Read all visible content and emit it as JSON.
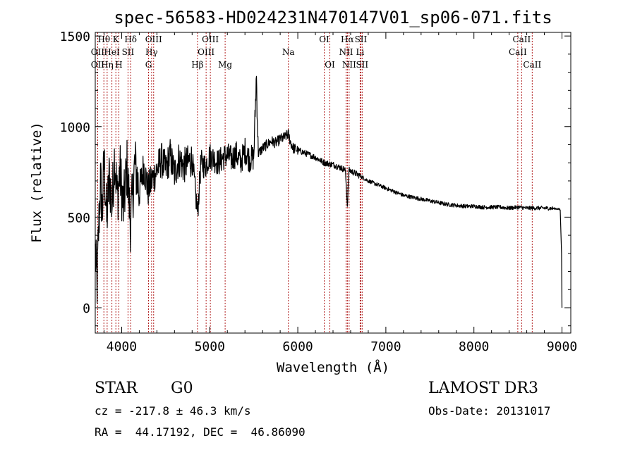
{
  "chart_data": {
    "type": "line",
    "title": "spec-56583-HD024231N470147V01_sp06-071.fits",
    "xlabel": "Wavelength (Å)",
    "ylabel": "Flux (relative)",
    "xlim": [
      3700,
      9100
    ],
    "ylim": [
      -140,
      1520
    ],
    "xticks": [
      4000,
      5000,
      6000,
      7000,
      8000,
      9000
    ],
    "xtick_labels": [
      "4000",
      "5000",
      "6000",
      "7000",
      "8000",
      "9000"
    ],
    "yticks": [
      0,
      500,
      1000,
      1500
    ],
    "ytick_labels": [
      "0",
      "500",
      "1000",
      "1500"
    ],
    "grid": false,
    "series": [
      {
        "name": "spectrum",
        "color": "#000000",
        "x": [
          3700,
          3720,
          3740,
          3760,
          3780,
          3800,
          3830,
          3860,
          3890,
          3920,
          3950,
          3980,
          4020,
          4060,
          4101,
          4150,
          4200,
          4250,
          4300,
          4340,
          4400,
          4450,
          4500,
          4550,
          4600,
          4650,
          4700,
          4750,
          4800,
          4861,
          4900,
          4950,
          5000,
          5050,
          5100,
          5150,
          5200,
          5250,
          5300,
          5350,
          5400,
          5450,
          5500,
          5530,
          5550,
          5600,
          5650,
          5700,
          5750,
          5800,
          5850,
          5890,
          5920,
          5950,
          6000,
          6100,
          6200,
          6300,
          6400,
          6500,
          6540,
          6563,
          6580,
          6620,
          6700,
          6800,
          6900,
          7000,
          7100,
          7200,
          7300,
          7400,
          7500,
          7600,
          7700,
          7800,
          7900,
          8000,
          8100,
          8200,
          8300,
          8400,
          8500,
          8600,
          8700,
          8800,
          8900,
          8960,
          8980,
          8995,
          9000
        ],
        "values": [
          300,
          120,
          450,
          700,
          520,
          820,
          480,
          730,
          560,
          850,
          600,
          760,
          540,
          780,
          460,
          800,
          640,
          780,
          650,
          700,
          760,
          820,
          760,
          840,
          740,
          820,
          780,
          800,
          820,
          520,
          800,
          780,
          840,
          820,
          800,
          830,
          840,
          820,
          850,
          800,
          870,
          820,
          830,
          1290,
          850,
          880,
          900,
          920,
          910,
          930,
          940,
          960,
          910,
          880,
          870,
          850,
          830,
          800,
          790,
          770,
          760,
          560,
          760,
          750,
          730,
          700,
          680,
          660,
          640,
          620,
          610,
          600,
          590,
          580,
          570,
          565,
          560,
          560,
          555,
          555,
          555,
          550,
          555,
          550,
          550,
          550,
          548,
          545,
          540,
          300,
          0
        ]
      }
    ],
    "lines": [
      {
        "label": "OII",
        "x": 3727,
        "row": 3
      },
      {
        "label": "OII",
        "x": 3727,
        "row": 2
      },
      {
        "label": "Hθ",
        "x": 3798,
        "row": 1
      },
      {
        "label": "Hη",
        "x": 3835,
        "row": 3
      },
      {
        "label": "HeI",
        "x": 3889,
        "row": 2
      },
      {
        "label": "K",
        "x": 3934,
        "row": 1
      },
      {
        "label": "H",
        "x": 3968,
        "row": 3
      },
      {
        "label": "SII",
        "x": 4072,
        "row": 2
      },
      {
        "label": "Hδ",
        "x": 4102,
        "row": 1
      },
      {
        "label": "G",
        "x": 4305,
        "row": 3
      },
      {
        "label": "Hγ",
        "x": 4340,
        "row": 2
      },
      {
        "label": "OIII",
        "x": 4363,
        "row": 1
      },
      {
        "label": "Hβ",
        "x": 4861,
        "row": 3
      },
      {
        "label": "OIII",
        "x": 4959,
        "row": 2
      },
      {
        "label": "OIII",
        "x": 5007,
        "row": 1
      },
      {
        "label": "Mg",
        "x": 5175,
        "row": 3
      },
      {
        "label": "Na",
        "x": 5893,
        "row": 2
      },
      {
        "label": "OI",
        "x": 6300,
        "row": 1
      },
      {
        "label": "OI",
        "x": 6364,
        "row": 3
      },
      {
        "label": "NII",
        "x": 6548,
        "row": 2
      },
      {
        "label": "Hα",
        "x": 6563,
        "row": 1
      },
      {
        "label": "NII",
        "x": 6583,
        "row": 3
      },
      {
        "label": "Li",
        "x": 6708,
        "row": 2
      },
      {
        "label": "SII",
        "x": 6716,
        "row": 1
      },
      {
        "label": "SII",
        "x": 6731,
        "row": 3
      },
      {
        "label": "CaII",
        "x": 8498,
        "row": 2
      },
      {
        "label": "CaII",
        "x": 8542,
        "row": 1
      },
      {
        "label": "CaII",
        "x": 8662,
        "row": 3
      }
    ],
    "line_color": "#b22222"
  },
  "info": {
    "class_label": "STAR",
    "subclass": "G0",
    "survey": "LAMOST DR3",
    "cz_text": "cz = -217.8 ± 46.3 km/s",
    "obs_date": "Obs-Date: 20131017",
    "radec_text": "RA =  44.17192, DEC =  46.86090"
  }
}
